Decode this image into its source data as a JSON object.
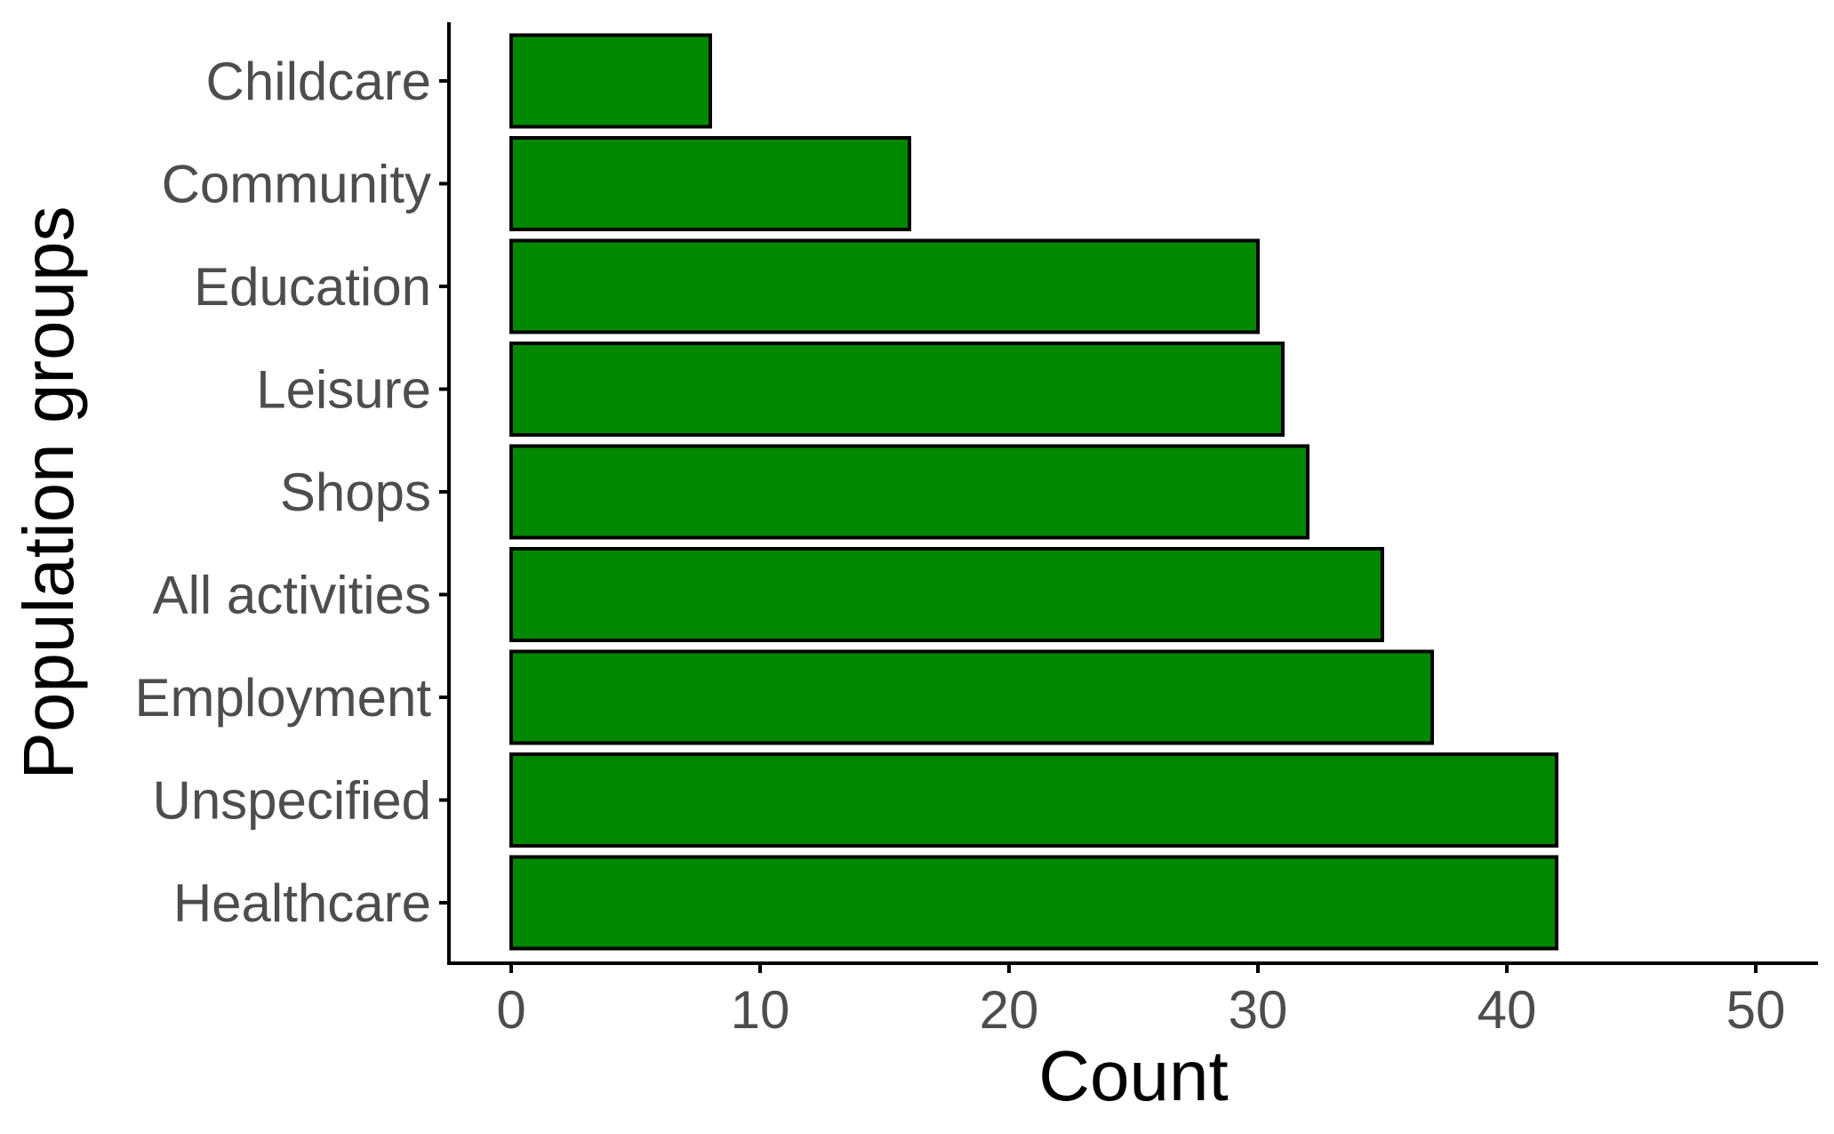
{
  "chart_data": {
    "type": "bar",
    "orientation": "horizontal",
    "categories": [
      "Childcare",
      "Community",
      "Education",
      "Leisure",
      "Shops",
      "All activities",
      "Employment",
      "Unspecified",
      "Healthcare"
    ],
    "values": [
      8,
      16,
      30,
      31,
      32,
      35,
      37,
      42,
      42
    ],
    "xlabel": "Count",
    "ylabel": "Population groups",
    "xlim": [
      -2.5,
      52.5
    ],
    "xticks": [
      0,
      10,
      20,
      30,
      40,
      50
    ],
    "grid": false,
    "legend": "none",
    "colors": {
      "bar_fill": "#008800",
      "bar_stroke": "#000000",
      "tick_label": "#4d4d4d",
      "axis": "#000000"
    }
  }
}
